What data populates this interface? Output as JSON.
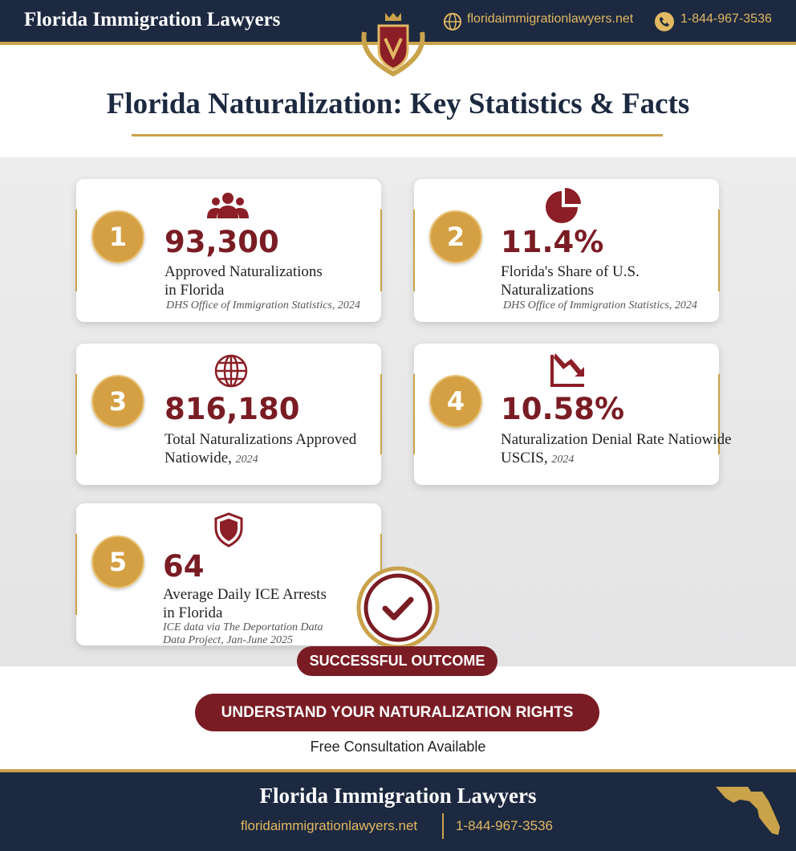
{
  "header": {
    "brand": "Florida Immigration Lawyers",
    "website": "floridaimmigrationlawyers.net",
    "phone": "1-844-967-3536"
  },
  "title": "Florida Naturalization: Key Statistics & Facts",
  "stats": [
    {
      "number": "1",
      "value": "93,300",
      "label_lines": [
        "Approved Naturalizations",
        "in Florida"
      ],
      "source": "DHS Office of Immigration Statistics, 2024"
    },
    {
      "number": "2",
      "value": "11.4%",
      "label_lines": [
        "Florida's Share of U.S.",
        "Naturalizations"
      ],
      "source": "DHS Office of Immigration Statistics, 2024"
    },
    {
      "number": "3",
      "value": "816,180",
      "label_lines": [
        "Total Naturalizations Approved",
        "Natiowide,"
      ],
      "source": "2024"
    },
    {
      "number": "4",
      "value": "10.58%",
      "label_lines": [
        "Naturalization Denial Rate Natiowide",
        "USCIS,"
      ],
      "source": "2024"
    },
    {
      "number": "5",
      "value": "64",
      "label_lines": [
        "Average Daily ICE Arrests",
        "in Florida"
      ],
      "source_lines": [
        "ICE data via The Deportation Data",
        "Data Project, Jan-June 2025"
      ]
    }
  ],
  "outcome_badge": "SUCCESSFUL OUTCOME",
  "cta": {
    "button": "UNDERSTAND YOUR NATURALIZATION RIGHTS",
    "note": "Free Consultation Available"
  },
  "footer": {
    "brand": "Florida Immigration Lawyers",
    "website": "floridaimmigrationlawyers.net",
    "phone": "1-844-967-3536"
  }
}
